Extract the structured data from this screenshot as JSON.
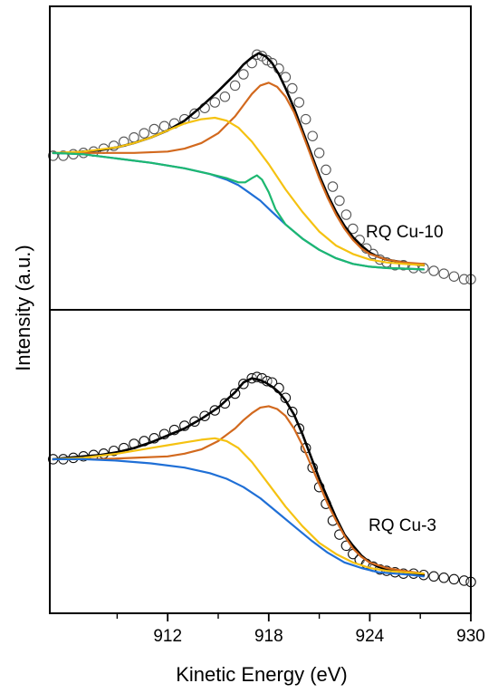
{
  "chart_data": {
    "type": "line",
    "xlabel": "Kinetic Energy (eV)",
    "ylabel": "Intensity (a.u.)",
    "xlim": [
      905,
      930
    ],
    "x_ticks": [
      "912",
      "918",
      "924",
      "930"
    ],
    "x_tick_values": [
      912,
      918,
      924,
      930
    ],
    "x_minor_ticks": [
      909,
      915,
      921,
      927
    ],
    "panels": [
      {
        "label": "RQ Cu-10",
        "ylim": [
          0,
          1
        ],
        "data_points": {
          "x": [
            905.2,
            905.8,
            906.4,
            907.0,
            907.6,
            908.2,
            908.8,
            909.4,
            910.0,
            910.6,
            911.2,
            911.8,
            912.4,
            913.0,
            913.6,
            914.2,
            914.8,
            915.4,
            916.0,
            916.5,
            917.0,
            917.3,
            917.6,
            917.9,
            918.2,
            918.6,
            919.0,
            919.4,
            919.8,
            920.2,
            920.6,
            921.0,
            921.4,
            921.8,
            922.2,
            922.6,
            923.0,
            923.4,
            923.8,
            924.2,
            924.6,
            925.0,
            925.5,
            926.0,
            926.6,
            927.2,
            927.8,
            928.4,
            929.0,
            929.6,
            930.0
          ],
          "y": [
            0.51,
            0.51,
            0.515,
            0.52,
            0.525,
            0.535,
            0.545,
            0.56,
            0.575,
            0.59,
            0.605,
            0.615,
            0.625,
            0.64,
            0.66,
            0.68,
            0.7,
            0.72,
            0.76,
            0.8,
            0.84,
            0.87,
            0.865,
            0.85,
            0.84,
            0.82,
            0.79,
            0.75,
            0.7,
            0.64,
            0.58,
            0.52,
            0.46,
            0.4,
            0.35,
            0.3,
            0.25,
            0.21,
            0.18,
            0.16,
            0.14,
            0.13,
            0.12,
            0.12,
            0.11,
            0.11,
            0.1,
            0.09,
            0.08,
            0.07,
            0.07
          ]
        },
        "series": [
          {
            "name": "",
            "color": "#000000",
            "x": [
              905.2,
              906,
              907,
              908,
              909,
              910,
              911,
              912,
              913,
              914,
              915,
              916,
              916.5,
              917,
              917.4,
              917.8,
              918.2,
              918.6,
              919,
              919.5,
              920,
              920.5,
              921,
              921.5,
              922,
              922.5,
              923,
              923.5,
              924,
              924.5,
              925,
              925.5,
              926,
              926.5,
              927.2
            ],
            "y": [
              0.52,
              0.52,
              0.525,
              0.53,
              0.54,
              0.555,
              0.575,
              0.6,
              0.635,
              0.685,
              0.74,
              0.8,
              0.835,
              0.86,
              0.875,
              0.865,
              0.84,
              0.8,
              0.75,
              0.68,
              0.6,
              0.52,
              0.44,
              0.37,
              0.31,
              0.26,
              0.22,
              0.19,
              0.165,
              0.15,
              0.14,
              0.135,
              0.13,
              0.125,
              0.12
            ]
          },
          {
            "name": "",
            "color": "#D2691E",
            "x": [
              905.2,
              908,
              910,
              912,
              913,
              914,
              915,
              916,
              916.5,
              917,
              917.5,
              918,
              918.5,
              919,
              919.5,
              920,
              920.5,
              921,
              921.5,
              922,
              922.5,
              923,
              923.5,
              924,
              925,
              926,
              927.2
            ],
            "y": [
              0.52,
              0.52,
              0.52,
              0.525,
              0.535,
              0.555,
              0.59,
              0.65,
              0.69,
              0.73,
              0.76,
              0.77,
              0.755,
              0.72,
              0.665,
              0.59,
              0.51,
              0.43,
              0.36,
              0.3,
              0.25,
              0.21,
              0.18,
              0.16,
              0.14,
              0.13,
              0.125
            ]
          },
          {
            "name": "",
            "color": "#F5C211",
            "x": [
              905.2,
              907,
              909,
              910,
              911,
              912,
              913,
              914,
              914.8,
              915.5,
              916.2,
              917,
              918,
              919,
              920,
              921,
              922,
              923,
              924,
              925,
              926,
              927.2
            ],
            "y": [
              0.52,
              0.525,
              0.54,
              0.555,
              0.575,
              0.6,
              0.625,
              0.64,
              0.645,
              0.635,
              0.61,
              0.56,
              0.48,
              0.39,
              0.31,
              0.24,
              0.19,
              0.16,
              0.14,
              0.13,
              0.125,
              0.12
            ]
          },
          {
            "name": "",
            "color": "#1F6FD6",
            "x": [
              905.2,
              907,
              909,
              911,
              913,
              914.5,
              915.5,
              916.2,
              916.8,
              917.5,
              918.2,
              919,
              920,
              921,
              922,
              923,
              924,
              925,
              926,
              927.2
            ],
            "y": [
              0.52,
              0.515,
              0.5,
              0.485,
              0.465,
              0.445,
              0.425,
              0.405,
              0.38,
              0.35,
              0.31,
              0.265,
              0.215,
              0.175,
              0.145,
              0.125,
              0.115,
              0.11,
              0.108,
              0.105
            ]
          },
          {
            "name": "",
            "color": "#1DB870",
            "x": [
              905.2,
              907,
              909,
              911,
              913,
              914.5,
              915.5,
              916.2,
              916.6,
              917,
              917.3,
              917.6,
              918,
              918.4,
              919,
              920,
              921,
              922,
              923,
              924,
              925,
              926,
              927.2
            ],
            "y": [
              0.52,
              0.515,
              0.5,
              0.485,
              0.465,
              0.445,
              0.43,
              0.415,
              0.415,
              0.43,
              0.44,
              0.425,
              0.38,
              0.32,
              0.265,
              0.215,
              0.175,
              0.145,
              0.125,
              0.115,
              0.11,
              0.108,
              0.105
            ]
          }
        ]
      },
      {
        "label": "RQ Cu-3",
        "ylim": [
          0,
          1
        ],
        "data_points": {
          "x": [
            905.2,
            905.8,
            906.4,
            907.0,
            907.6,
            908.2,
            908.8,
            909.4,
            910.0,
            910.6,
            911.2,
            911.8,
            912.4,
            913.0,
            913.6,
            914.2,
            914.8,
            915.4,
            916.0,
            916.5,
            917.0,
            917.3,
            917.6,
            917.9,
            918.2,
            918.6,
            919.0,
            919.4,
            919.8,
            920.2,
            920.6,
            921.0,
            921.4,
            921.8,
            922.2,
            922.6,
            923.0,
            923.4,
            923.8,
            924.2,
            924.6,
            925.0,
            925.5,
            926.0,
            926.6,
            927.2,
            927.8,
            928.4,
            929.0,
            929.6,
            930.0
          ],
          "y": [
            0.51,
            0.51,
            0.515,
            0.52,
            0.525,
            0.53,
            0.54,
            0.55,
            0.565,
            0.575,
            0.585,
            0.6,
            0.615,
            0.63,
            0.645,
            0.665,
            0.685,
            0.71,
            0.745,
            0.78,
            0.8,
            0.805,
            0.8,
            0.79,
            0.785,
            0.765,
            0.73,
            0.68,
            0.62,
            0.55,
            0.48,
            0.41,
            0.35,
            0.29,
            0.24,
            0.2,
            0.17,
            0.15,
            0.135,
            0.125,
            0.115,
            0.11,
            0.105,
            0.1,
            0.1,
            0.095,
            0.09,
            0.085,
            0.08,
            0.075,
            0.07
          ]
        },
        "series": [
          {
            "name": "",
            "color": "#000000",
            "x": [
              905.2,
              906,
              907,
              908,
              909,
              910,
              911,
              912,
              913,
              914,
              915,
              916,
              916.5,
              917,
              917.4,
              917.8,
              918.2,
              918.6,
              919,
              919.5,
              920,
              920.5,
              921,
              921.5,
              922,
              922.5,
              923,
              923.5,
              924,
              924.5,
              925,
              925.5,
              926,
              926.5,
              927.2
            ],
            "y": [
              0.51,
              0.515,
              0.52,
              0.525,
              0.535,
              0.55,
              0.57,
              0.595,
              0.62,
              0.655,
              0.695,
              0.75,
              0.785,
              0.8,
              0.795,
              0.785,
              0.77,
              0.75,
              0.72,
              0.67,
              0.6,
              0.52,
              0.44,
              0.37,
              0.3,
              0.24,
              0.2,
              0.165,
              0.14,
              0.125,
              0.115,
              0.11,
              0.105,
              0.1,
              0.095
            ]
          },
          {
            "name": "",
            "color": "#D2691E",
            "x": [
              905.2,
              908,
              910,
              912,
              913,
              914,
              915,
              916,
              916.5,
              917,
              917.5,
              918,
              918.5,
              919,
              919.5,
              920,
              920.5,
              921,
              921.5,
              922,
              922.5,
              923,
              923.5,
              924,
              925,
              926,
              927.2
            ],
            "y": [
              0.51,
              0.51,
              0.515,
              0.52,
              0.53,
              0.545,
              0.575,
              0.62,
              0.65,
              0.675,
              0.695,
              0.7,
              0.69,
              0.665,
              0.62,
              0.56,
              0.49,
              0.42,
              0.35,
              0.29,
              0.235,
              0.19,
              0.16,
              0.14,
              0.12,
              0.11,
              0.1
            ]
          },
          {
            "name": "",
            "color": "#F5C211",
            "x": [
              905.2,
              907,
              909,
              910,
              911,
              912,
              913,
              914,
              914.8,
              915.5,
              916.2,
              917,
              918,
              919,
              920,
              921,
              922,
              923,
              924,
              925,
              926,
              927.2
            ],
            "y": [
              0.51,
              0.515,
              0.53,
              0.54,
              0.55,
              0.56,
              0.57,
              0.58,
              0.585,
              0.575,
              0.55,
              0.5,
              0.42,
              0.34,
              0.27,
              0.21,
              0.17,
              0.14,
              0.12,
              0.11,
              0.105,
              0.1
            ]
          },
          {
            "name": "",
            "color": "#1F6FD6",
            "x": [
              905.2,
              907,
              909,
              911,
              913,
              914.5,
              915.5,
              916.5,
              917.5,
              918.5,
              919.5,
              920.5,
              921.5,
              922.5,
              923.5,
              924.5,
              925.5,
              926.5,
              927.2
            ],
            "y": [
              0.51,
              0.51,
              0.505,
              0.495,
              0.48,
              0.46,
              0.44,
              0.41,
              0.37,
              0.32,
              0.27,
              0.22,
              0.175,
              0.14,
              0.12,
              0.105,
              0.1,
              0.095,
              0.09
            ]
          }
        ]
      }
    ],
    "grid": false,
    "legend": "none",
    "marker": "open-circle"
  }
}
